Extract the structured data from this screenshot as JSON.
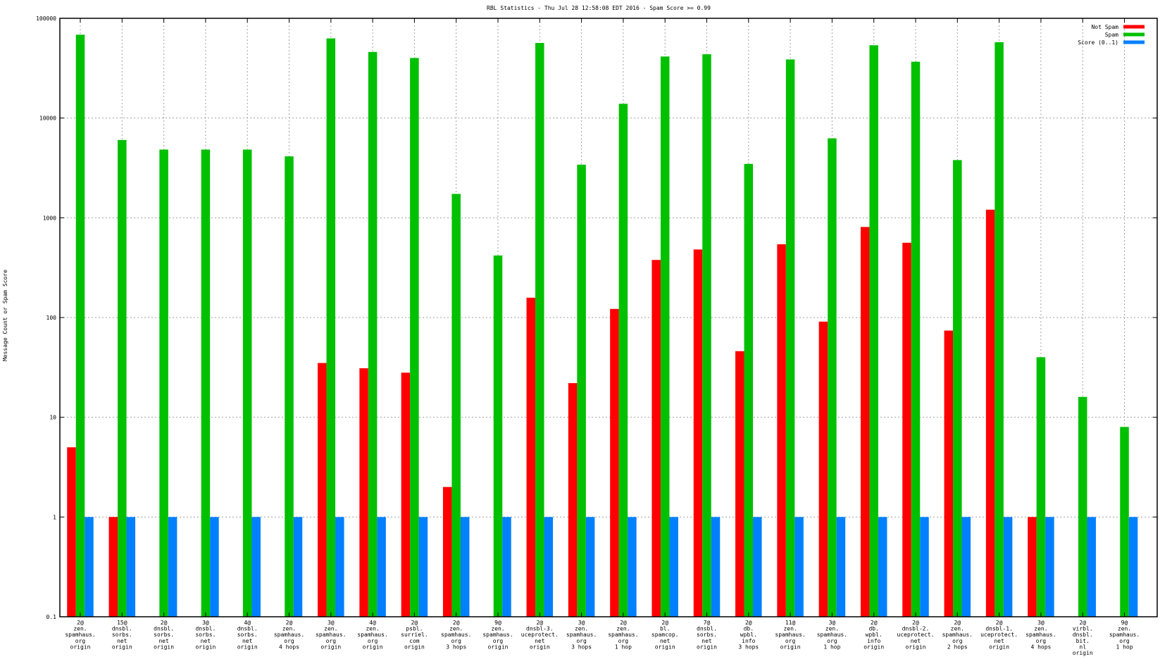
{
  "chart_data": {
    "type": "bar",
    "title": "RBL Statistics - Thu Jul 28 12:58:08 EDT 2016 - Spam Score >= 0.99",
    "xlabel": "",
    "ylabel": "Message Count or Spam Score",
    "yscale": "log",
    "ylim": [
      0.1,
      100000
    ],
    "yticks": [
      "0.1",
      "1",
      "10",
      "100",
      "1000",
      "10000",
      "100000"
    ],
    "grid": true,
    "legend_position": "top-right",
    "categories": [
      [
        "2@",
        "zen.",
        "spamhaus.",
        "org",
        "origin"
      ],
      [
        "15@",
        "dnsbl.",
        "sorbs.",
        "net",
        "origin"
      ],
      [
        "2@",
        "dnsbl.",
        "sorbs.",
        "net",
        "origin"
      ],
      [
        "3@",
        "dnsbl.",
        "sorbs.",
        "net",
        "origin"
      ],
      [
        "4@",
        "dnsbl.",
        "sorbs.",
        "net",
        "origin"
      ],
      [
        "2@",
        "zen.",
        "spamhaus.",
        "org",
        "4 hops"
      ],
      [
        "3@",
        "zen.",
        "spamhaus.",
        "org",
        "origin"
      ],
      [
        "4@",
        "zen.",
        "spamhaus.",
        "org",
        "origin"
      ],
      [
        "2@",
        "psbl.",
        "surriel.",
        "com",
        "origin"
      ],
      [
        "2@",
        "zen.",
        "spamhaus.",
        "org",
        "3 hops"
      ],
      [
        "9@",
        "zen.",
        "spamhaus.",
        "org",
        "origin"
      ],
      [
        "2@",
        "dnsbl-3.",
        "uceprotect.",
        "net",
        "origin"
      ],
      [
        "3@",
        "zen.",
        "spamhaus.",
        "org",
        "3 hops"
      ],
      [
        "2@",
        "zen.",
        "spamhaus.",
        "org",
        "1 hop"
      ],
      [
        "2@",
        "bl.",
        "spamcop.",
        "net",
        "origin"
      ],
      [
        "7@",
        "dnsbl.",
        "sorbs.",
        "net",
        "origin"
      ],
      [
        "2@",
        "db.",
        "wpbl.",
        "info",
        "3 hops"
      ],
      [
        "11@",
        "zen.",
        "spamhaus.",
        "org",
        "origin"
      ],
      [
        "3@",
        "zen.",
        "spamhaus.",
        "org",
        "1 hop"
      ],
      [
        "2@",
        "db.",
        "wpbl.",
        "info",
        "origin"
      ],
      [
        "2@",
        "dnsbl-2.",
        "uceprotect.",
        "net",
        "origin"
      ],
      [
        "2@",
        "zen.",
        "spamhaus.",
        "org",
        "2 hops"
      ],
      [
        "2@",
        "dnsbl-1.",
        "uceprotect.",
        "net",
        "origin"
      ],
      [
        "3@",
        "zen.",
        "spamhaus.",
        "org",
        "4 hops"
      ],
      [
        "2@",
        "virbl.",
        "dnsbl.",
        "bit.",
        "nl",
        "origin"
      ],
      [
        "9@",
        "zen.",
        "spamhaus.",
        "org",
        "1 hop"
      ]
    ],
    "series": [
      {
        "name": "Not Spam",
        "color": "#ff0000",
        "values": [
          5,
          1,
          0,
          0,
          0,
          0,
          35,
          31,
          28,
          2,
          0,
          158,
          22,
          122,
          378,
          481,
          46,
          543,
          91,
          809,
          562,
          74,
          1206,
          1,
          0,
          0
        ]
      },
      {
        "name": "Spam",
        "color": "#00c000",
        "values": [
          68500,
          6030,
          4830,
          4830,
          4830,
          4130,
          62900,
          46000,
          40000,
          1735,
          419,
          56600,
          3410,
          13900,
          41400,
          43600,
          3470,
          38700,
          6260,
          53700,
          36700,
          3790,
          57600,
          40,
          16,
          8
        ]
      },
      {
        "name": "Score (0..1)",
        "color": "#0080ff",
        "values": [
          1,
          1,
          1,
          1,
          1,
          1,
          1,
          1,
          1,
          1,
          1,
          1,
          1,
          1,
          1,
          1,
          1,
          1,
          1,
          1,
          1,
          1,
          1,
          1,
          1,
          1
        ]
      }
    ]
  }
}
